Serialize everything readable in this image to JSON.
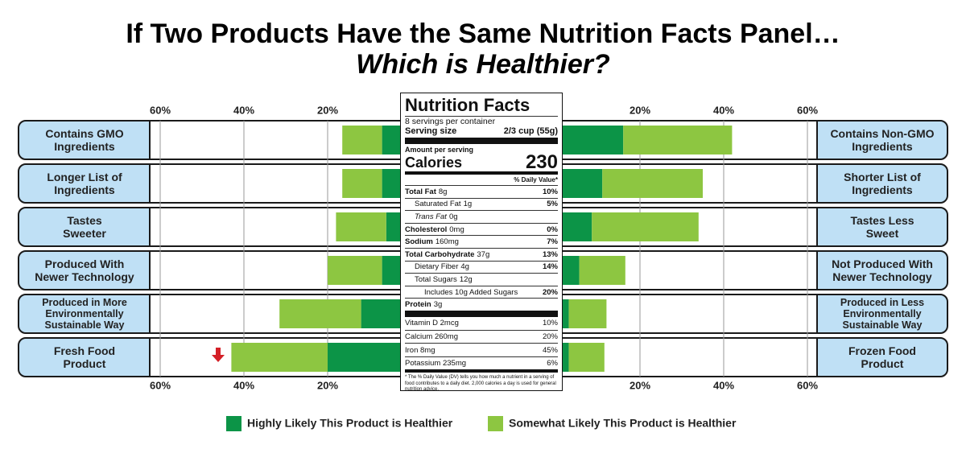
{
  "chart_data": {
    "type": "diverging_bar",
    "title": "If Two Products Have the Same Nutrition Facts Panel…",
    "subtitle": "Which is Healthier?",
    "categories": [
      "Contains GMO\nIngredients",
      "Longer List of\nIngredients",
      "Tastes\nSweeter",
      "Produced With\nNewer Technology",
      "Produced in More\nEnvironmentally\nSustainable Way",
      "Fresh Food\nProduct"
    ],
    "categories_right": [
      "Contains Non-GMO\nIngredients",
      "Shorter List of\nIngredients",
      "Tastes Less\nSweet",
      "Not Produced With\nNewer Technology",
      "Produced in Less\nEnvironmentally\nSustainable Way",
      "Frozen Food\nProduct"
    ],
    "series": [
      {
        "name": "Highly Likely This Product is Healthier",
        "color": "#0c9447",
        "left": [
          7,
          7,
          6,
          7,
          12,
          20
        ],
        "right": [
          16,
          11,
          8.5,
          5.5,
          3,
          3
        ]
      },
      {
        "name": "Somewhat Likely This Product is Healthier",
        "color": "#8dc641",
        "left": [
          9.5,
          9.5,
          12,
          13,
          19.5,
          23
        ],
        "right": [
          26,
          24,
          25.5,
          11,
          9,
          8.5
        ]
      }
    ],
    "xlim": [
      0,
      60
    ],
    "xticks": [
      {
        "value": 20,
        "label": "20%"
      },
      {
        "value": 40,
        "label": "40%"
      },
      {
        "value": 60,
        "label": "60%"
      }
    ],
    "grid": true,
    "legend": "bottom"
  },
  "nutrition_facts": {
    "title": "Nutrition Facts",
    "servings": "8 servings per container",
    "serving_size_label": "Serving size",
    "serving_size": "2/3 cup (55g)",
    "amount_per_serving": "Amount per serving",
    "calories_label": "Calories",
    "calories": "230",
    "dv_header": "% Daily Value*",
    "rows": [
      {
        "name": "Total Fat",
        "amount": "8g",
        "dv": "10%"
      },
      {
        "name": "Saturated Fat",
        "amount": "1g",
        "dv": "5%"
      },
      {
        "name": "Trans Fat",
        "amount": "0g"
      },
      {
        "name": "Cholesterol",
        "amount": "0mg",
        "dv": "0%"
      },
      {
        "name": "Sodium",
        "amount": "160mg",
        "dv": "7%"
      },
      {
        "name": "Total Carbohydrate",
        "amount": "37g",
        "dv": "13%"
      },
      {
        "name": "Dietary Fiber",
        "amount": "4g",
        "dv": "14%"
      },
      {
        "name": "Total Sugars",
        "amount": "12g"
      },
      {
        "name": "Includes 10g Added Sugars",
        "dv": "20%"
      },
      {
        "name": "Protein",
        "amount": "3g"
      }
    ],
    "vitamins": [
      {
        "name": "Vitamin D 2mcg",
        "dv": "10%"
      },
      {
        "name": "Calcium 260mg",
        "dv": "20%"
      },
      {
        "name": "Iron 8mg",
        "dv": "45%"
      },
      {
        "name": "Potassium 235mg",
        "dv": "6%"
      }
    ],
    "footnote": "* The % Daily Value (DV) tells you how much a nutrient in a serving of food contributes to a daily diet. 2,000 calories a day is used for general nutrition advice."
  }
}
